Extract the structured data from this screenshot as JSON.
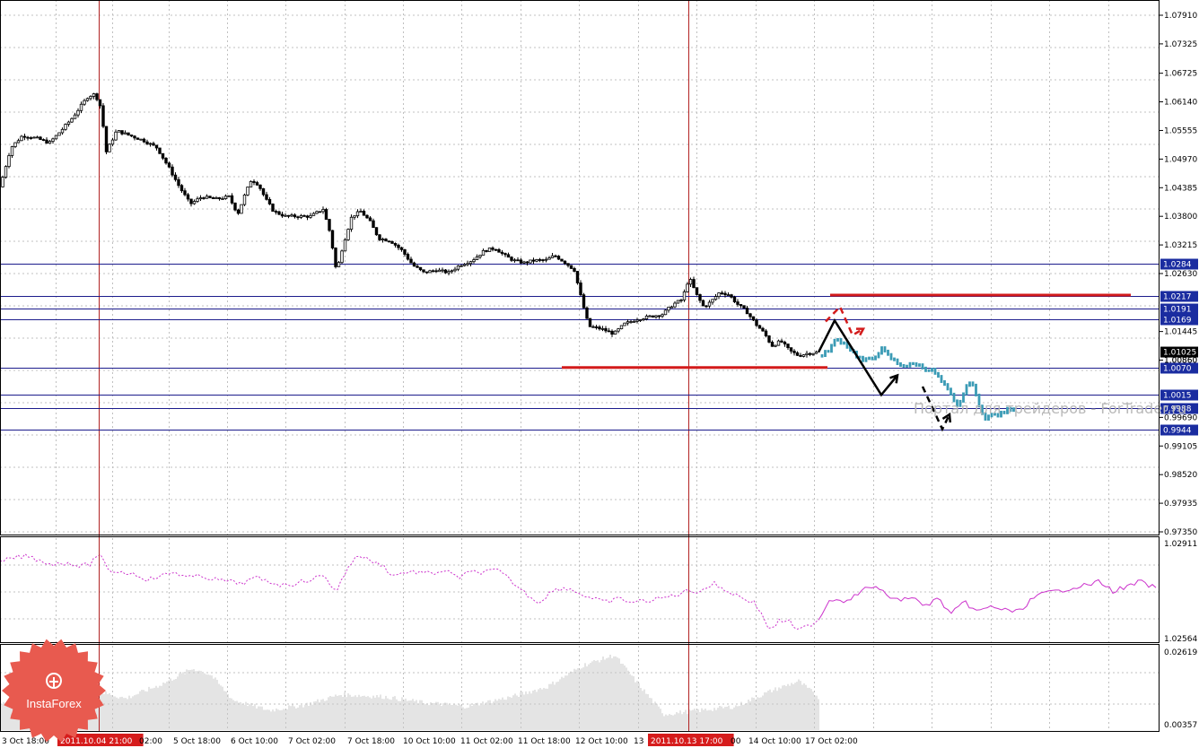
{
  "watermark": "Портал для трейдеров - ForTrader.ru",
  "logo": {
    "text": "InstaForex"
  },
  "colors": {
    "candle": "#000000",
    "forecast": "#3a9bb5",
    "level_line": "#1c1c8c",
    "red_line": "#d31b1b",
    "vline": "#b22222",
    "osc_line": "#cc33cc",
    "volume": "#c8c8c8",
    "grid": "#c0c0c0",
    "logo_bg": "#e85a4f"
  },
  "chart_data": {
    "type": "candlestick",
    "price_axis": {
      "ticks": [
        "1.07910",
        "1.07325",
        "1.06725",
        "1.06140",
        "1.05555",
        "1.04970",
        "1.04385",
        "1.03800",
        "1.03215",
        "1.02630",
        "1.01445",
        "1.00860",
        "0.99690",
        "0.99105",
        "0.98520",
        "0.97935",
        "0.97350"
      ],
      "range": [
        0.9735,
        1.0791
      ]
    },
    "time_axis": {
      "labels": [
        "3 Oct 18:00",
        "2011.10.04 21:00",
        "02:00",
        "5 Oct 18:00",
        "6 Oct 10:00",
        "7 Oct 02:00",
        "7 Oct 18:00",
        "10 Oct 10:00",
        "11 Oct 02:00",
        "11 Oct 18:00",
        "12 Oct 10:00",
        "13",
        "2011.10.13 17:00",
        "00",
        "14 Oct 10:00",
        "17 Oct 02:00"
      ],
      "highlighted": [
        "2011.10.04 21:00",
        "2011.10.13 17:00"
      ]
    },
    "levels": [
      {
        "label": "1.0284",
        "value": 1.0284
      },
      {
        "label": "1.0217",
        "value": 1.0217
      },
      {
        "label": "1.0191",
        "value": 1.0191
      },
      {
        "label": "1.0169",
        "value": 1.0169
      },
      {
        "label": "1.0070",
        "value": 1.007
      },
      {
        "label": "1.0015",
        "value": 1.0015
      },
      {
        "label": "0.9988",
        "value": 0.9988
      },
      {
        "label": "0.9944",
        "value": 0.9944
      }
    ],
    "current_price": {
      "label": "1.01025",
      "value": 1.01025
    },
    "extra_price_label": "1.00860",
    "resistance_line": 1.0219,
    "support_line": 1.0071,
    "vertical_markers": [
      "2011.10.04 21:00",
      "2011.10.13 17:00"
    ],
    "close_path": [
      [
        0,
        1.044
      ],
      [
        12,
        1.052
      ],
      [
        25,
        1.0545
      ],
      [
        40,
        1.054
      ],
      [
        55,
        1.053
      ],
      [
        68,
        1.0555
      ],
      [
        80,
        1.058
      ],
      [
        90,
        1.0605
      ],
      [
        98,
        1.0625
      ],
      [
        106,
        1.063
      ],
      [
        113,
        1.06
      ],
      [
        118,
        1.051
      ],
      [
        130,
        1.0555
      ],
      [
        145,
        1.0545
      ],
      [
        160,
        1.0535
      ],
      [
        175,
        1.052
      ],
      [
        188,
        1.048
      ],
      [
        200,
        1.044
      ],
      [
        212,
        1.0405
      ],
      [
        225,
        1.042
      ],
      [
        240,
        1.0415
      ],
      [
        255,
        1.042
      ],
      [
        265,
        1.0385
      ],
      [
        272,
        1.042
      ],
      [
        280,
        1.0455
      ],
      [
        288,
        1.0445
      ],
      [
        296,
        1.0415
      ],
      [
        305,
        1.039
      ],
      [
        318,
        1.038
      ],
      [
        332,
        1.038
      ],
      [
        346,
        1.038
      ],
      [
        360,
        1.0395
      ],
      [
        368,
        1.0345
      ],
      [
        375,
        1.0265
      ],
      [
        382,
        1.032
      ],
      [
        392,
        1.038
      ],
      [
        402,
        1.039
      ],
      [
        412,
        1.037
      ],
      [
        422,
        1.0335
      ],
      [
        435,
        1.033
      ],
      [
        448,
        1.031
      ],
      [
        460,
        1.028
      ],
      [
        472,
        1.0265
      ],
      [
        486,
        1.027
      ],
      [
        500,
        1.0265
      ],
      [
        512,
        1.028
      ],
      [
        526,
        1.029
      ],
      [
        540,
        1.031
      ],
      [
        552,
        1.0315
      ],
      [
        562,
        1.03
      ],
      [
        572,
        1.029
      ],
      [
        584,
        1.0285
      ],
      [
        596,
        1.029
      ],
      [
        608,
        1.029
      ],
      [
        618,
        1.03
      ],
      [
        630,
        1.0285
      ],
      [
        640,
        1.027
      ],
      [
        648,
        1.021
      ],
      [
        656,
        1.0155
      ],
      [
        670,
        1.015
      ],
      [
        684,
        1.014
      ],
      [
        696,
        1.016
      ],
      [
        710,
        1.017
      ],
      [
        724,
        1.0175
      ],
      [
        738,
        1.018
      ],
      [
        750,
        1.02
      ],
      [
        760,
        1.021
      ],
      [
        768,
        1.0255
      ],
      [
        776,
        1.022
      ],
      [
        784,
        1.0195
      ],
      [
        792,
        1.0205
      ],
      [
        802,
        1.0225
      ],
      [
        812,
        1.022
      ],
      [
        822,
        1.02
      ],
      [
        832,
        1.0185
      ],
      [
        842,
        1.016
      ],
      [
        852,
        1.014
      ],
      [
        860,
        1.0115
      ],
      [
        870,
        1.0125
      ],
      [
        880,
        1.0105
      ],
      [
        890,
        1.0095
      ],
      [
        900,
        1.01
      ],
      [
        912,
        1.0102
      ]
    ],
    "forecast_path": [
      [
        916,
        1.0095
      ],
      [
        924,
        1.011
      ],
      [
        932,
        1.013
      ],
      [
        942,
        1.012
      ],
      [
        952,
        1.01
      ],
      [
        962,
        1.0085
      ],
      [
        972,
        1.009
      ],
      [
        982,
        1.011
      ],
      [
        990,
        1.0095
      ],
      [
        1000,
        1.008
      ],
      [
        1010,
        1.0075
      ],
      [
        1020,
        1.008
      ],
      [
        1030,
        1.007
      ],
      [
        1040,
        1.0065
      ],
      [
        1050,
        1.004
      ],
      [
        1058,
        1.002
      ],
      [
        1066,
        0.999
      ],
      [
        1074,
        1.002
      ],
      [
        1082,
        1.005
      ],
      [
        1090,
        0.9995
      ],
      [
        1098,
        0.997
      ],
      [
        1106,
        0.9975
      ],
      [
        1114,
        0.9975
      ],
      [
        1122,
        0.9985
      ],
      [
        1130,
        0.999
      ]
    ],
    "arrows_black": [
      [
        [
          912,
          1.0102
        ],
        [
          930,
          1.0167
        ],
        [
          982,
          1.0015
        ],
        [
          1000,
          1.0055
        ]
      ],
      [
        [
          1028,
          1.0032
        ],
        [
          1050,
          0.9945
        ],
        [
          1058,
          0.9975
        ]
      ]
    ],
    "arrows_red": [
      [
        [
          920,
          1.0165
        ],
        [
          936,
          1.0195
        ],
        [
          950,
          1.0137
        ],
        [
          962,
          1.015
        ]
      ]
    ],
    "oscillator": {
      "ticks": [
        "1.02911",
        "1.02564"
      ],
      "split_x": 912,
      "points": [
        [
          0,
          0.2
        ],
        [
          15,
          0.15
        ],
        [
          30,
          0.13
        ],
        [
          45,
          0.18
        ],
        [
          60,
          0.22
        ],
        [
          75,
          0.2
        ],
        [
          90,
          0.24
        ],
        [
          100,
          0.22
        ],
        [
          110,
          0.1
        ],
        [
          120,
          0.28
        ],
        [
          135,
          0.3
        ],
        [
          150,
          0.32
        ],
        [
          165,
          0.38
        ],
        [
          180,
          0.34
        ],
        [
          195,
          0.3
        ],
        [
          210,
          0.36
        ],
        [
          225,
          0.34
        ],
        [
          240,
          0.38
        ],
        [
          255,
          0.4
        ],
        [
          270,
          0.42
        ],
        [
          285,
          0.36
        ],
        [
          300,
          0.4
        ],
        [
          315,
          0.44
        ],
        [
          330,
          0.42
        ],
        [
          345,
          0.38
        ],
        [
          360,
          0.34
        ],
        [
          375,
          0.5
        ],
        [
          388,
          0.24
        ],
        [
          400,
          0.12
        ],
        [
          412,
          0.18
        ],
        [
          425,
          0.22
        ],
        [
          438,
          0.34
        ],
        [
          452,
          0.3
        ],
        [
          466,
          0.3
        ],
        [
          480,
          0.32
        ],
        [
          495,
          0.28
        ],
        [
          510,
          0.36
        ],
        [
          525,
          0.3
        ],
        [
          540,
          0.3
        ],
        [
          555,
          0.28
        ],
        [
          570,
          0.4
        ],
        [
          585,
          0.52
        ],
        [
          600,
          0.62
        ],
        [
          615,
          0.5
        ],
        [
          630,
          0.46
        ],
        [
          645,
          0.52
        ],
        [
          660,
          0.58
        ],
        [
          675,
          0.62
        ],
        [
          690,
          0.58
        ],
        [
          705,
          0.62
        ],
        [
          720,
          0.6
        ],
        [
          735,
          0.58
        ],
        [
          750,
          0.55
        ],
        [
          765,
          0.5
        ],
        [
          780,
          0.5
        ],
        [
          795,
          0.42
        ],
        [
          810,
          0.5
        ],
        [
          825,
          0.56
        ],
        [
          840,
          0.62
        ],
        [
          850,
          0.76
        ],
        [
          858,
          0.92
        ],
        [
          868,
          0.82
        ],
        [
          878,
          0.8
        ],
        [
          888,
          0.92
        ],
        [
          898,
          0.88
        ],
        [
          912,
          0.8
        ],
        [
          925,
          0.58
        ],
        [
          940,
          0.6
        ],
        [
          955,
          0.54
        ],
        [
          970,
          0.44
        ],
        [
          985,
          0.52
        ],
        [
          1000,
          0.6
        ],
        [
          1015,
          0.56
        ],
        [
          1030,
          0.66
        ],
        [
          1045,
          0.58
        ],
        [
          1060,
          0.74
        ],
        [
          1075,
          0.62
        ],
        [
          1090,
          0.72
        ],
        [
          1105,
          0.66
        ],
        [
          1120,
          0.7
        ],
        [
          1135,
          0.72
        ],
        [
          1150,
          0.58
        ],
        [
          1165,
          0.52
        ],
        [
          1180,
          0.5
        ],
        [
          1195,
          0.46
        ],
        [
          1210,
          0.44
        ],
        [
          1225,
          0.4
        ],
        [
          1240,
          0.5
        ],
        [
          1255,
          0.46
        ],
        [
          1270,
          0.4
        ],
        [
          1285,
          0.46
        ]
      ]
    },
    "volume": {
      "ticks": [
        "0.02619",
        "0.00357"
      ],
      "bars": [
        [
          0,
          0.35
        ],
        [
          60,
          0.42
        ],
        [
          100,
          0.52
        ],
        [
          140,
          0.4
        ],
        [
          180,
          0.58
        ],
        [
          215,
          0.78
        ],
        [
          235,
          0.7
        ],
        [
          260,
          0.38
        ],
        [
          300,
          0.25
        ],
        [
          340,
          0.32
        ],
        [
          380,
          0.45
        ],
        [
          430,
          0.42
        ],
        [
          470,
          0.35
        ],
        [
          520,
          0.3
        ],
        [
          570,
          0.42
        ],
        [
          610,
          0.55
        ],
        [
          650,
          0.82
        ],
        [
          685,
          0.95
        ],
        [
          710,
          0.6
        ],
        [
          740,
          0.2
        ],
        [
          780,
          0.25
        ],
        [
          820,
          0.3
        ],
        [
          860,
          0.5
        ],
        [
          890,
          0.62
        ],
        [
          912,
          0.42
        ]
      ],
      "end_x": 912
    }
  }
}
